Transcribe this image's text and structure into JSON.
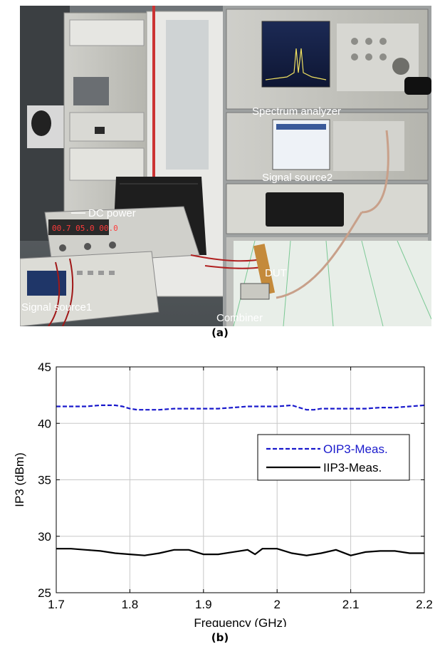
{
  "photo_labels": {
    "spectrum": "Spectrum analyzer",
    "source2": "Signal source2",
    "dc_power": "DC power",
    "dut": "DUT",
    "source1": "Signal source1",
    "combiner": "Combiner"
  },
  "captions": {
    "a": "(a)",
    "b": "(b)"
  },
  "colors": {
    "oip3": "#1a1acc",
    "iip3": "#000000"
  },
  "chart_data": {
    "type": "line",
    "title": "",
    "xlabel": "Frequency (GHz)",
    "ylabel": "IP3 (dBm)",
    "xlim": [
      1.7,
      2.2
    ],
    "ylim": [
      25,
      45
    ],
    "xticks": [
      1.7,
      1.8,
      1.9,
      2.0,
      2.1,
      2.2
    ],
    "xtick_labels": [
      "1.7",
      "1.8",
      "1.9",
      "2",
      "2.1",
      "2.2"
    ],
    "yticks": [
      25,
      30,
      35,
      40,
      45
    ],
    "ytick_labels": [
      "25",
      "30",
      "35",
      "40",
      "45"
    ],
    "grid": true,
    "legend_position": "right",
    "series": [
      {
        "name": "OIP3-Meas.",
        "style": "dashed",
        "color": "#1a1acc",
        "x": [
          1.7,
          1.72,
          1.74,
          1.76,
          1.78,
          1.79,
          1.8,
          1.81,
          1.82,
          1.84,
          1.86,
          1.88,
          1.9,
          1.92,
          1.94,
          1.96,
          1.97,
          1.98,
          2.0,
          2.02,
          2.03,
          2.04,
          2.05,
          2.06,
          2.08,
          2.1,
          2.12,
          2.14,
          2.16,
          2.18,
          2.2
        ],
        "y": [
          41.5,
          41.5,
          41.5,
          41.6,
          41.6,
          41.5,
          41.3,
          41.2,
          41.2,
          41.2,
          41.3,
          41.3,
          41.3,
          41.3,
          41.4,
          41.5,
          41.5,
          41.5,
          41.5,
          41.6,
          41.4,
          41.2,
          41.2,
          41.3,
          41.3,
          41.3,
          41.3,
          41.4,
          41.4,
          41.5,
          41.6
        ]
      },
      {
        "name": "IIP3-Meas.",
        "style": "solid",
        "color": "#000000",
        "x": [
          1.7,
          1.72,
          1.74,
          1.76,
          1.78,
          1.8,
          1.82,
          1.84,
          1.86,
          1.88,
          1.9,
          1.92,
          1.94,
          1.96,
          1.97,
          1.98,
          2.0,
          2.02,
          2.04,
          2.06,
          2.08,
          2.1,
          2.12,
          2.14,
          2.16,
          2.18,
          2.2
        ],
        "y": [
          28.9,
          28.9,
          28.8,
          28.7,
          28.5,
          28.4,
          28.3,
          28.5,
          28.8,
          28.8,
          28.4,
          28.4,
          28.6,
          28.8,
          28.4,
          28.9,
          28.9,
          28.5,
          28.3,
          28.5,
          28.8,
          28.3,
          28.6,
          28.7,
          28.7,
          28.5,
          28.5
        ]
      }
    ]
  }
}
